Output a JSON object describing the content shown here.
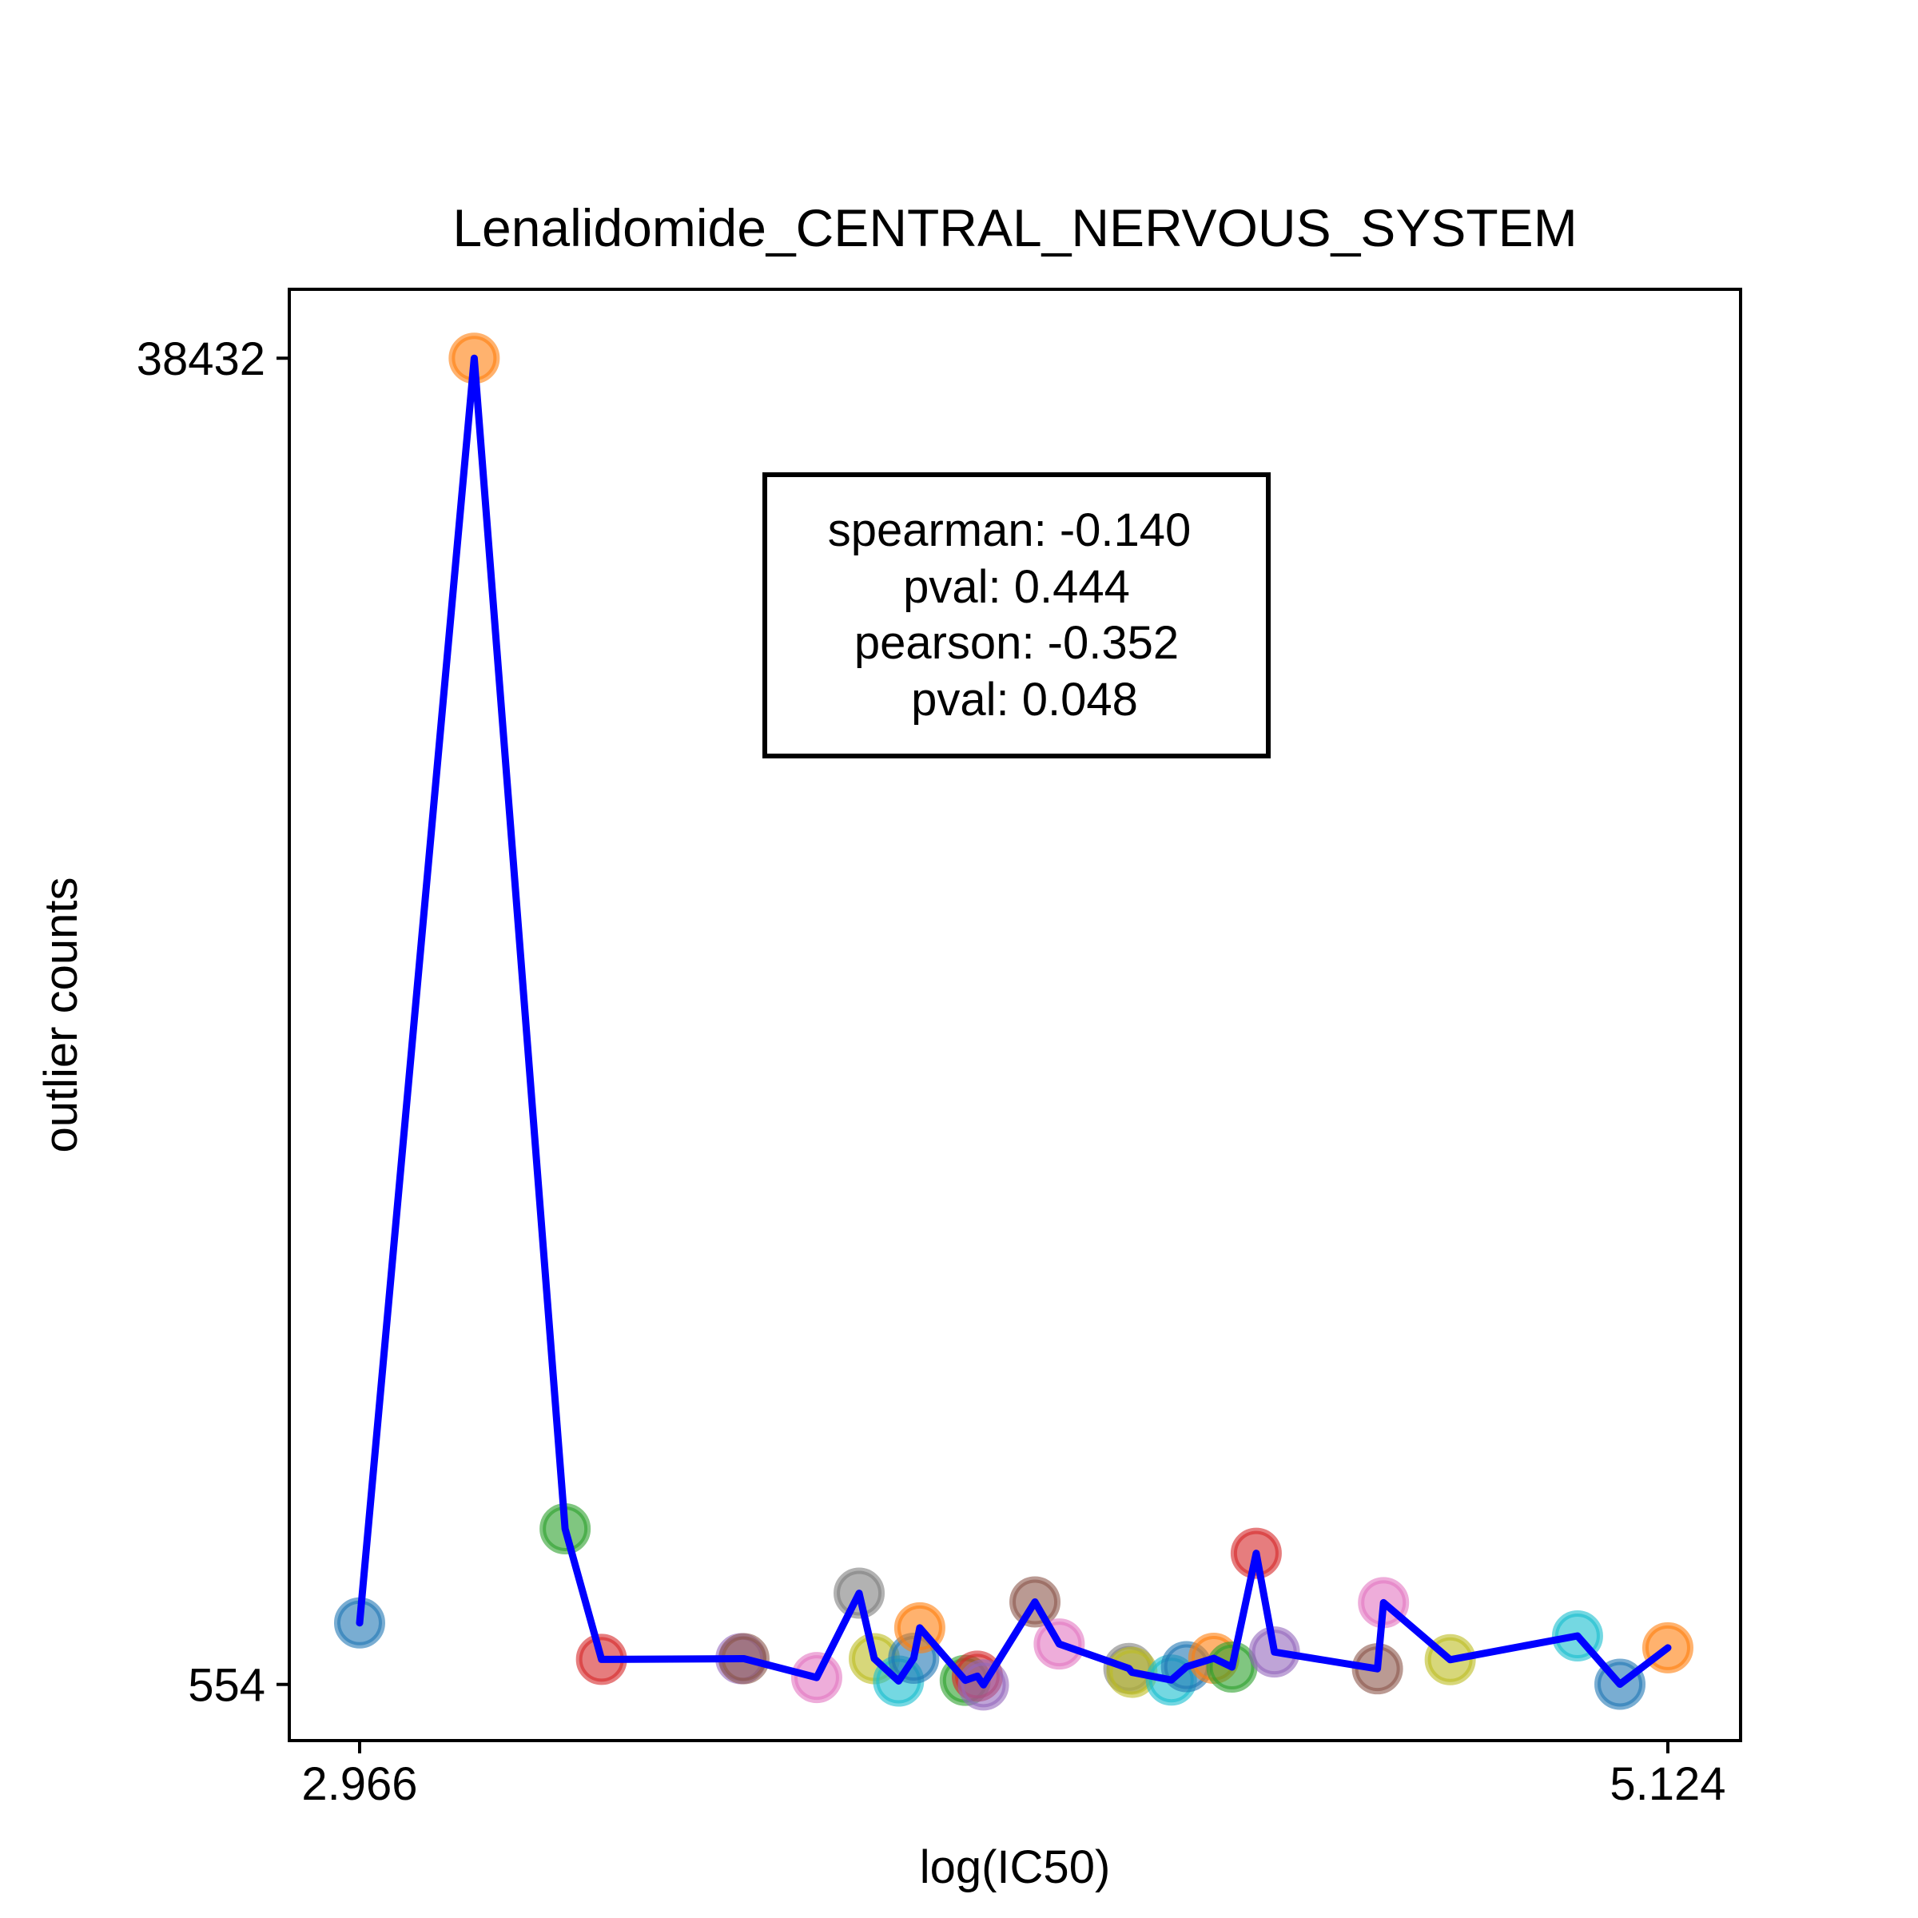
{
  "chart_data": {
    "type": "scatter",
    "title": "Lenalidomide_CENTRAL_NERVOUS_SYSTEM",
    "xlabel": "log(IC50)",
    "ylabel": "outlier counts",
    "xlim": [
      2.85,
      5.244
    ],
    "ylim": [
      -1050,
      40400
    ],
    "x_ticks": [
      2.966,
      5.124
    ],
    "x_tick_labels": [
      "2.966",
      "5.124"
    ],
    "y_ticks": [
      554,
      38432
    ],
    "y_tick_labels": [
      "554",
      "38432"
    ],
    "grid": false,
    "line_color": "#0000ff",
    "stats_box": {
      "lines": [
        "spearman: -0.140",
        "pval: 0.444",
        "pearson: -0.352",
        "pval: 0.048"
      ],
      "position": "upper-center"
    },
    "points": [
      {
        "x": 2.966,
        "y": 2310,
        "color": "#1f77b4"
      },
      {
        "x": 3.155,
        "y": 38432,
        "color": "#ff7f0e"
      },
      {
        "x": 3.305,
        "y": 5000,
        "color": "#2ca02c"
      },
      {
        "x": 3.365,
        "y": 1270,
        "color": "#d62728"
      },
      {
        "x": 3.595,
        "y": 1290,
        "color": "#9467bd"
      },
      {
        "x": 3.6,
        "y": 1290,
        "color": "#8c564b"
      },
      {
        "x": 3.72,
        "y": 750,
        "color": "#e377c2"
      },
      {
        "x": 3.79,
        "y": 3160,
        "color": "#7f7f7f"
      },
      {
        "x": 3.815,
        "y": 1290,
        "color": "#bcbd22"
      },
      {
        "x": 3.855,
        "y": 650,
        "color": "#17becf"
      },
      {
        "x": 3.88,
        "y": 1300,
        "color": "#1f77b4"
      },
      {
        "x": 3.89,
        "y": 2170,
        "color": "#ff7f0e"
      },
      {
        "x": 3.965,
        "y": 670,
        "color": "#2ca02c"
      },
      {
        "x": 3.985,
        "y": 790,
        "color": "#d62728"
      },
      {
        "x": 3.995,
        "y": 540,
        "color": "#9467bd"
      },
      {
        "x": 4.08,
        "y": 2910,
        "color": "#8c564b"
      },
      {
        "x": 4.12,
        "y": 1710,
        "color": "#e377c2"
      },
      {
        "x": 4.235,
        "y": 1010,
        "color": "#7f7f7f"
      },
      {
        "x": 4.24,
        "y": 900,
        "color": "#bcbd22"
      },
      {
        "x": 4.305,
        "y": 680,
        "color": "#17becf"
      },
      {
        "x": 4.33,
        "y": 1060,
        "color": "#1f77b4"
      },
      {
        "x": 4.375,
        "y": 1300,
        "color": "#ff7f0e"
      },
      {
        "x": 4.405,
        "y": 1050,
        "color": "#2ca02c"
      },
      {
        "x": 4.445,
        "y": 4300,
        "color": "#d62728"
      },
      {
        "x": 4.475,
        "y": 1480,
        "color": "#9467bd"
      },
      {
        "x": 4.645,
        "y": 1000,
        "color": "#8c564b"
      },
      {
        "x": 4.655,
        "y": 2890,
        "color": "#e377c2"
      },
      {
        "x": 4.765,
        "y": 1260,
        "color": "#bcbd22"
      },
      {
        "x": 4.975,
        "y": 1940,
        "color": "#17becf"
      },
      {
        "x": 5.045,
        "y": 560,
        "color": "#1f77b4"
      },
      {
        "x": 5.124,
        "y": 1600,
        "color": "#ff7f0e"
      }
    ]
  }
}
